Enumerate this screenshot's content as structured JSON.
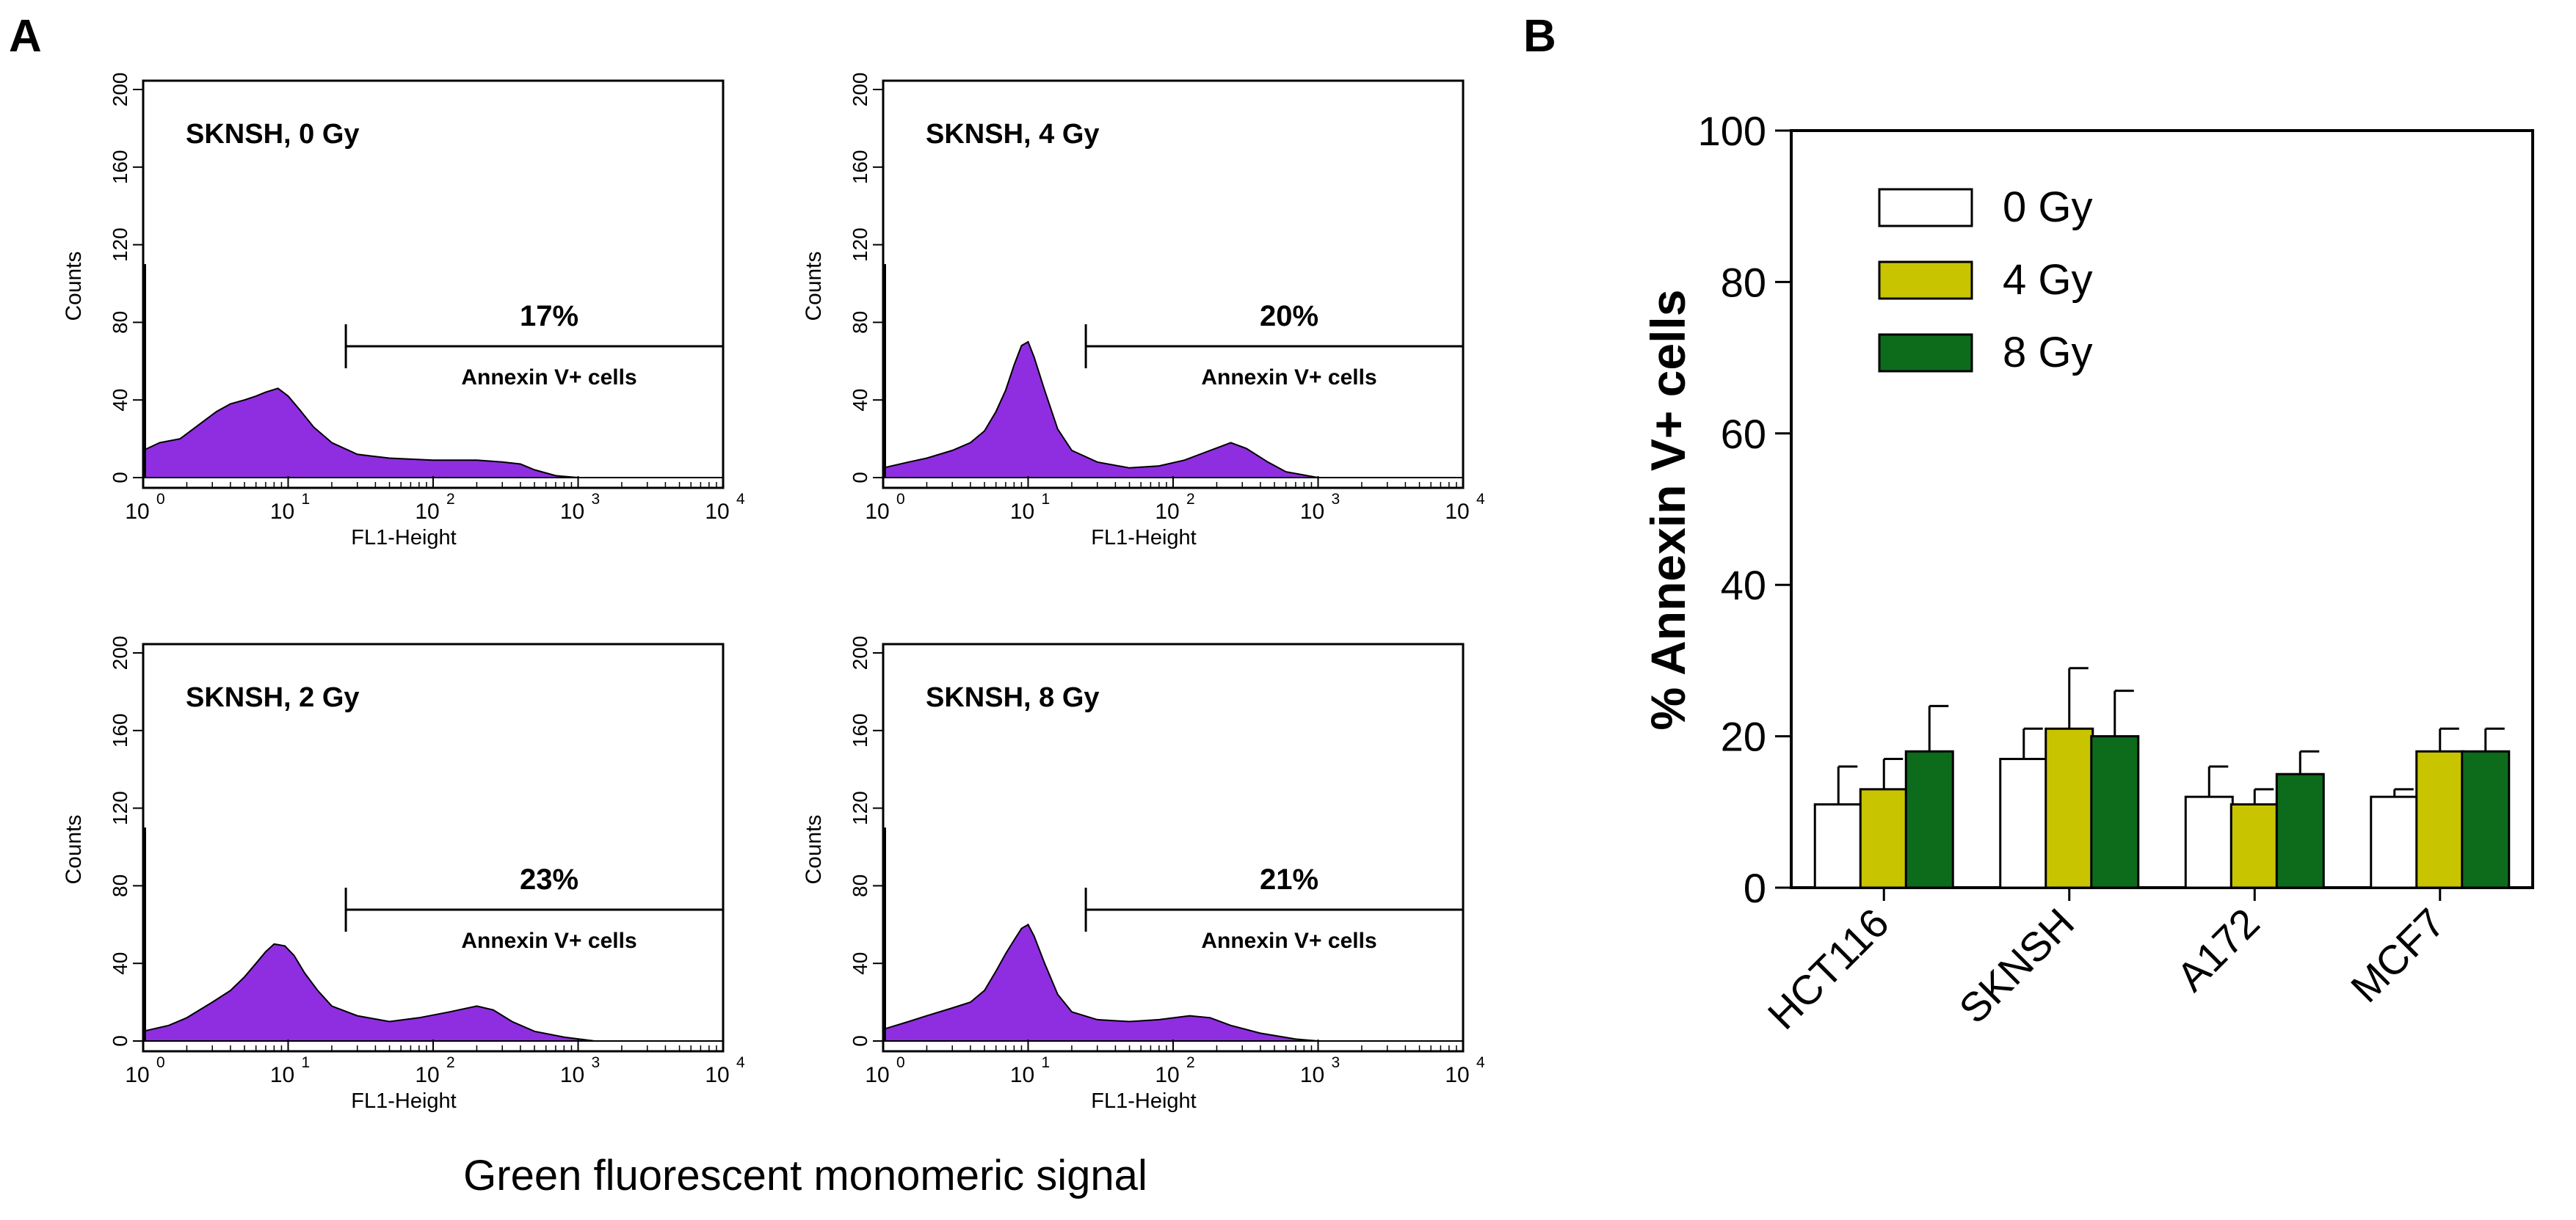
{
  "panels": {
    "a_letter": "A",
    "b_letter": "B",
    "a_xlabel": "Green fluorescent monomeric signal"
  },
  "colors": {
    "histogram_fill": "#8e2ee0",
    "bar_0gy": "#ffffff",
    "bar_4gy": "#c8c400",
    "bar_8gy": "#0d6b1c"
  },
  "chart_data": [
    {
      "type": "area",
      "id": "hist_0gy",
      "title": "SKNSH, 0 Gy",
      "xlabel": "FL1-Height",
      "ylabel": "Counts",
      "xscale": "log",
      "xlim": [
        1,
        10000
      ],
      "xticks": [
        "10",
        "10",
        "10",
        "10",
        "10"
      ],
      "xtick_exponents": [
        "0",
        "1",
        "2",
        "3",
        "4"
      ],
      "ylim": [
        0,
        200
      ],
      "yticks": [
        "0",
        "40",
        "80",
        "120",
        "160",
        "200"
      ],
      "gate_start": 25,
      "gate_end": 10000,
      "gate_percent": "17%",
      "gate_label": "Annexin V+ cells",
      "y_at_origin": 110,
      "points": [
        [
          1,
          14
        ],
        [
          1.3,
          18
        ],
        [
          1.8,
          20
        ],
        [
          2.5,
          28
        ],
        [
          3.2,
          34
        ],
        [
          4,
          38
        ],
        [
          5,
          40
        ],
        [
          6,
          42
        ],
        [
          7,
          44
        ],
        [
          8.5,
          46
        ],
        [
          10,
          42
        ],
        [
          12,
          35
        ],
        [
          15,
          26
        ],
        [
          20,
          18
        ],
        [
          30,
          12
        ],
        [
          50,
          10
        ],
        [
          100,
          9
        ],
        [
          200,
          9
        ],
        [
          300,
          8
        ],
        [
          400,
          7
        ],
        [
          500,
          4
        ],
        [
          700,
          1
        ],
        [
          1000,
          0
        ],
        [
          10000,
          0
        ]
      ]
    },
    {
      "type": "area",
      "id": "hist_4gy",
      "title": "SKNSH, 4 Gy",
      "xlabel": "FL1-Height",
      "ylabel": "Counts",
      "xscale": "log",
      "xlim": [
        1,
        10000
      ],
      "xticks": [
        "10",
        "10",
        "10",
        "10",
        "10"
      ],
      "xtick_exponents": [
        "0",
        "1",
        "2",
        "3",
        "4"
      ],
      "ylim": [
        0,
        200
      ],
      "yticks": [
        "0",
        "40",
        "80",
        "120",
        "160",
        "200"
      ],
      "gate_start": 25,
      "gate_end": 10000,
      "gate_percent": "20%",
      "gate_label": "Annexin V+ cells",
      "y_at_origin": 110,
      "points": [
        [
          1,
          5
        ],
        [
          1.5,
          8
        ],
        [
          2,
          10
        ],
        [
          3,
          14
        ],
        [
          4,
          18
        ],
        [
          5,
          24
        ],
        [
          6,
          34
        ],
        [
          7,
          45
        ],
        [
          8,
          58
        ],
        [
          9,
          68
        ],
        [
          10,
          70
        ],
        [
          11,
          62
        ],
        [
          13,
          45
        ],
        [
          16,
          25
        ],
        [
          20,
          14
        ],
        [
          30,
          8
        ],
        [
          50,
          5
        ],
        [
          80,
          6
        ],
        [
          120,
          9
        ],
        [
          180,
          14
        ],
        [
          250,
          18
        ],
        [
          320,
          15
        ],
        [
          450,
          8
        ],
        [
          600,
          3
        ],
        [
          1000,
          0
        ],
        [
          10000,
          0
        ]
      ]
    },
    {
      "type": "area",
      "id": "hist_2gy",
      "title": "SKNSH, 2 Gy",
      "xlabel": "FL1-Height",
      "ylabel": "Counts",
      "xscale": "log",
      "xlim": [
        1,
        10000
      ],
      "xticks": [
        "10",
        "10",
        "10",
        "10",
        "10"
      ],
      "xtick_exponents": [
        "0",
        "1",
        "2",
        "3",
        "4"
      ],
      "ylim": [
        0,
        200
      ],
      "yticks": [
        "0",
        "40",
        "80",
        "120",
        "160",
        "200"
      ],
      "gate_start": 25,
      "gate_end": 10000,
      "gate_percent": "23%",
      "gate_label": "Annexin V+ cells",
      "y_at_origin": 110,
      "points": [
        [
          1,
          5
        ],
        [
          1.5,
          8
        ],
        [
          2,
          12
        ],
        [
          3,
          20
        ],
        [
          4,
          26
        ],
        [
          5,
          33
        ],
        [
          6,
          40
        ],
        [
          7,
          46
        ],
        [
          8,
          50
        ],
        [
          9.5,
          49
        ],
        [
          11,
          44
        ],
        [
          13,
          35
        ],
        [
          16,
          26
        ],
        [
          20,
          18
        ],
        [
          30,
          13
        ],
        [
          50,
          10
        ],
        [
          80,
          12
        ],
        [
          130,
          15
        ],
        [
          200,
          18
        ],
        [
          260,
          16
        ],
        [
          350,
          10
        ],
        [
          500,
          5
        ],
        [
          800,
          2
        ],
        [
          1300,
          0
        ],
        [
          10000,
          0
        ]
      ]
    },
    {
      "type": "area",
      "id": "hist_8gy",
      "title": "SKNSH, 8 Gy",
      "xlabel": "FL1-Height",
      "ylabel": "Counts",
      "xscale": "log",
      "xlim": [
        1,
        10000
      ],
      "xticks": [
        "10",
        "10",
        "10",
        "10",
        "10"
      ],
      "xtick_exponents": [
        "0",
        "1",
        "2",
        "3",
        "4"
      ],
      "ylim": [
        0,
        200
      ],
      "yticks": [
        "0",
        "40",
        "80",
        "120",
        "160",
        "200"
      ],
      "gate_start": 25,
      "gate_end": 10000,
      "gate_percent": "21%",
      "gate_label": "Annexin V+ cells",
      "y_at_origin": 110,
      "points": [
        [
          1,
          6
        ],
        [
          1.5,
          10
        ],
        [
          2,
          13
        ],
        [
          3,
          17
        ],
        [
          4,
          20
        ],
        [
          5,
          26
        ],
        [
          6,
          36
        ],
        [
          7,
          45
        ],
        [
          8,
          52
        ],
        [
          9,
          58
        ],
        [
          10,
          60
        ],
        [
          11,
          54
        ],
        [
          13,
          40
        ],
        [
          16,
          24
        ],
        [
          20,
          15
        ],
        [
          30,
          11
        ],
        [
          50,
          10
        ],
        [
          80,
          11
        ],
        [
          130,
          13
        ],
        [
          180,
          12
        ],
        [
          250,
          8
        ],
        [
          400,
          4
        ],
        [
          700,
          1
        ],
        [
          1000,
          0
        ],
        [
          10000,
          0
        ]
      ]
    },
    {
      "type": "bar",
      "id": "annexin_bars",
      "title": "",
      "xlabel": "",
      "ylabel": "% Annexin V+ cells",
      "ylim": [
        0,
        100
      ],
      "yticks": [
        "0",
        "20",
        "40",
        "60",
        "80",
        "100"
      ],
      "categories": [
        "HCT116",
        "SKNSH",
        "A172",
        "MCF7"
      ],
      "legend_position": "top-left",
      "series": [
        {
          "name": "0 Gy",
          "values": [
            11,
            17,
            12,
            12
          ],
          "errors": [
            5,
            4,
            4,
            1
          ]
        },
        {
          "name": "4 Gy",
          "values": [
            13,
            21,
            11,
            18
          ],
          "errors": [
            4,
            8,
            2,
            3
          ]
        },
        {
          "name": "8 Gy",
          "values": [
            18,
            20,
            15,
            18
          ],
          "errors": [
            6,
            6,
            3,
            3
          ]
        }
      ]
    }
  ]
}
